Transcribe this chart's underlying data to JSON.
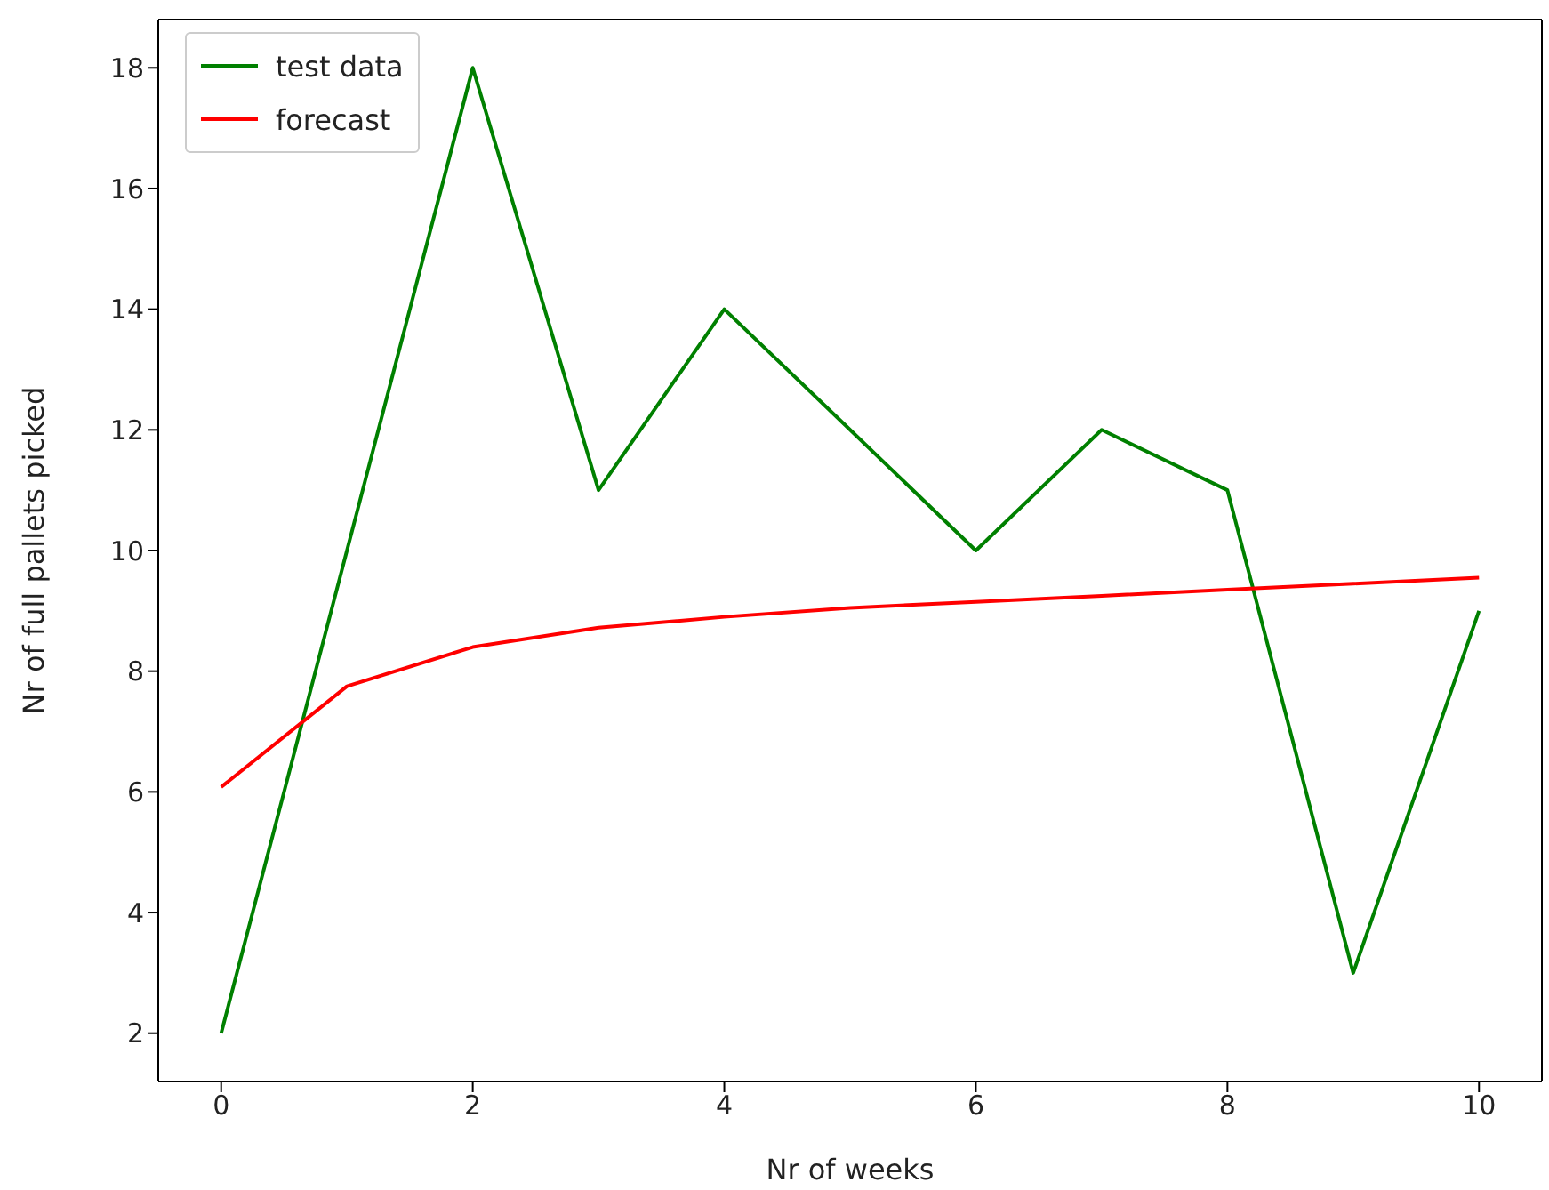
{
  "chart_data": {
    "type": "line",
    "xlabel": "Nr of weeks",
    "ylabel": "Nr of full pallets picked",
    "x": [
      0,
      1,
      2,
      3,
      4,
      5,
      6,
      7,
      8,
      9,
      10
    ],
    "series": [
      {
        "name": "test data",
        "color": "#008000",
        "values": [
          2,
          10,
          18,
          11,
          14,
          12,
          10,
          12,
          11,
          3,
          9
        ]
      },
      {
        "name": "forecast",
        "color": "#ff0000",
        "values": [
          6.08,
          7.75,
          8.4,
          8.72,
          8.9,
          9.05,
          9.15,
          9.25,
          9.35,
          9.45,
          9.55
        ]
      }
    ],
    "xlim": [
      -0.5,
      10.5
    ],
    "xticks": [
      0,
      2,
      4,
      6,
      8,
      10
    ],
    "ylim": [
      1.2,
      18.8
    ],
    "yticks": [
      2,
      4,
      6,
      8,
      10,
      12,
      14,
      16,
      18
    ],
    "grid": false,
    "legend": "top left",
    "marker": "none",
    "line_style": "solid"
  }
}
